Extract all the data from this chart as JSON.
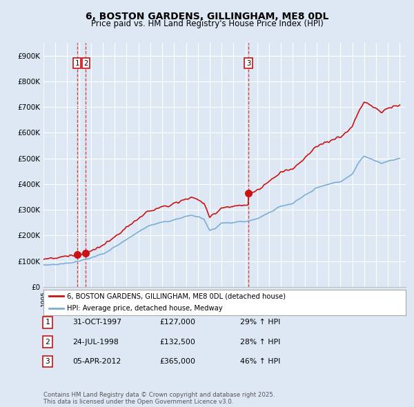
{
  "title": "6, BOSTON GARDENS, GILLINGHAM, ME8 0DL",
  "subtitle": "Price paid vs. HM Land Registry's House Price Index (HPI)",
  "background_color": "#dde8f4",
  "plot_bg_color": "#dde8f4",
  "ytick_labels": [
    "£0",
    "£100K",
    "£200K",
    "£300K",
    "£400K",
    "£500K",
    "£600K",
    "£700K",
    "£800K",
    "£900K"
  ],
  "yticks": [
    0,
    100000,
    200000,
    300000,
    400000,
    500000,
    600000,
    700000,
    800000,
    900000
  ],
  "ylim": [
    0,
    950000
  ],
  "xlim_start": 1995,
  "xlim_end": 2025.5,
  "legend_line1": "6, BOSTON GARDENS, GILLINGHAM, ME8 0DL (detached house)",
  "legend_line2": "HPI: Average price, detached house, Medway",
  "footer": "Contains HM Land Registry data © Crown copyright and database right 2025.\nThis data is licensed under the Open Government Licence v3.0.",
  "transactions": [
    {
      "num": 1,
      "date": "31-OCT-1997",
      "price": "£127,000",
      "change": "29% ↑ HPI",
      "year": 1997.83,
      "price_val": 127000
    },
    {
      "num": 2,
      "date": "24-JUL-1998",
      "price": "£132,500",
      "change": "28% ↑ HPI",
      "year": 1998.56,
      "price_val": 132500
    },
    {
      "num": 3,
      "date": "05-APR-2012",
      "price": "£365,000",
      "change": "46% ↑ HPI",
      "year": 2012.26,
      "price_val": 365000
    }
  ],
  "hpi_color": "#7aaed6",
  "price_color": "#cc1111",
  "grid_color": "#ffffff",
  "dashed_color": "#cc1111"
}
